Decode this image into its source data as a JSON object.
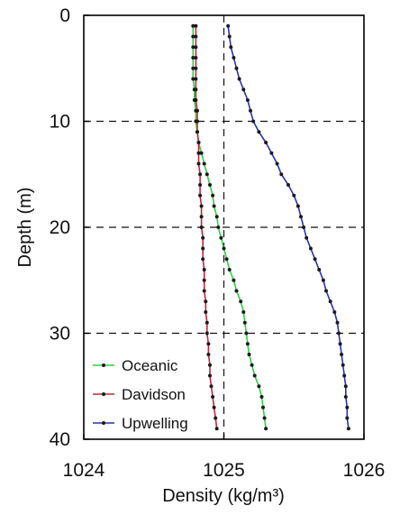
{
  "chart_data": {
    "type": "line",
    "xlabel": "Density (kg/m³)",
    "ylabel": "Depth (m)",
    "xlim": [
      1024,
      1026
    ],
    "ylim": [
      0,
      40
    ],
    "y_inverted": true,
    "x_ticks": [
      "1024",
      "1025",
      "1026"
    ],
    "y_ticks": [
      "0",
      "10",
      "20",
      "30",
      "40"
    ],
    "grid": "dashed horizontal lines at depth 10, 20, 30 and dashed vertical line at density 1025",
    "legend_position": "bottom-left",
    "series": [
      {
        "name": "Oceanic",
        "color": "#2fcf45",
        "points": [
          [
            1024.78,
            1
          ],
          [
            1024.78,
            2
          ],
          [
            1024.78,
            3
          ],
          [
            1024.78,
            4
          ],
          [
            1024.78,
            5
          ],
          [
            1024.78,
            6
          ],
          [
            1024.79,
            7
          ],
          [
            1024.79,
            8
          ],
          [
            1024.8,
            9
          ],
          [
            1024.8,
            10
          ],
          [
            1024.81,
            11
          ],
          [
            1024.82,
            12
          ],
          [
            1024.84,
            13
          ],
          [
            1024.86,
            14
          ],
          [
            1024.88,
            15
          ],
          [
            1024.9,
            16
          ],
          [
            1024.92,
            17
          ],
          [
            1024.93,
            18
          ],
          [
            1024.95,
            19
          ],
          [
            1024.96,
            20
          ],
          [
            1024.98,
            21
          ],
          [
            1025.0,
            22
          ],
          [
            1025.02,
            23
          ],
          [
            1025.04,
            24
          ],
          [
            1025.07,
            25
          ],
          [
            1025.09,
            26
          ],
          [
            1025.12,
            27
          ],
          [
            1025.14,
            28
          ],
          [
            1025.15,
            29
          ],
          [
            1025.16,
            30
          ],
          [
            1025.17,
            31
          ],
          [
            1025.18,
            32
          ],
          [
            1025.2,
            33
          ],
          [
            1025.22,
            34
          ],
          [
            1025.25,
            35
          ],
          [
            1025.27,
            36
          ],
          [
            1025.28,
            37
          ],
          [
            1025.29,
            38
          ],
          [
            1025.3,
            39
          ]
        ]
      },
      {
        "name": "Davidson",
        "color": "#c0283a",
        "points": [
          [
            1024.8,
            1
          ],
          [
            1024.8,
            2
          ],
          [
            1024.8,
            3
          ],
          [
            1024.8,
            4
          ],
          [
            1024.8,
            5
          ],
          [
            1024.8,
            6
          ],
          [
            1024.8,
            7
          ],
          [
            1024.8,
            8
          ],
          [
            1024.81,
            9
          ],
          [
            1024.81,
            10
          ],
          [
            1024.81,
            11
          ],
          [
            1024.82,
            12
          ],
          [
            1024.82,
            13
          ],
          [
            1024.82,
            14
          ],
          [
            1024.83,
            15
          ],
          [
            1024.83,
            16
          ],
          [
            1024.83,
            17
          ],
          [
            1024.84,
            18
          ],
          [
            1024.84,
            19
          ],
          [
            1024.84,
            20
          ],
          [
            1024.85,
            21
          ],
          [
            1024.85,
            22
          ],
          [
            1024.85,
            23
          ],
          [
            1024.86,
            24
          ],
          [
            1024.86,
            25
          ],
          [
            1024.86,
            26
          ],
          [
            1024.87,
            27
          ],
          [
            1024.87,
            28
          ],
          [
            1024.88,
            29
          ],
          [
            1024.88,
            30
          ],
          [
            1024.89,
            31
          ],
          [
            1024.89,
            32
          ],
          [
            1024.9,
            33
          ],
          [
            1024.9,
            34
          ],
          [
            1024.91,
            35
          ],
          [
            1024.92,
            36
          ],
          [
            1024.93,
            37
          ],
          [
            1024.94,
            38
          ],
          [
            1024.95,
            39
          ]
        ]
      },
      {
        "name": "Upwelling",
        "color": "#2833b5",
        "points": [
          [
            1025.03,
            1
          ],
          [
            1025.04,
            2
          ],
          [
            1025.05,
            3
          ],
          [
            1025.07,
            4
          ],
          [
            1025.09,
            5
          ],
          [
            1025.11,
            6
          ],
          [
            1025.14,
            7
          ],
          [
            1025.17,
            8
          ],
          [
            1025.19,
            9
          ],
          [
            1025.21,
            10
          ],
          [
            1025.25,
            11
          ],
          [
            1025.3,
            12
          ],
          [
            1025.34,
            13
          ],
          [
            1025.38,
            14
          ],
          [
            1025.41,
            15
          ],
          [
            1025.46,
            16
          ],
          [
            1025.5,
            17
          ],
          [
            1025.53,
            18
          ],
          [
            1025.55,
            19
          ],
          [
            1025.57,
            20
          ],
          [
            1025.59,
            21
          ],
          [
            1025.62,
            22
          ],
          [
            1025.65,
            23
          ],
          [
            1025.68,
            24
          ],
          [
            1025.71,
            25
          ],
          [
            1025.73,
            26
          ],
          [
            1025.76,
            27
          ],
          [
            1025.79,
            28
          ],
          [
            1025.81,
            29
          ],
          [
            1025.82,
            30
          ],
          [
            1025.83,
            31
          ],
          [
            1025.84,
            32
          ],
          [
            1025.85,
            33
          ],
          [
            1025.86,
            34
          ],
          [
            1025.87,
            35
          ],
          [
            1025.87,
            36
          ],
          [
            1025.88,
            37
          ],
          [
            1025.88,
            38
          ],
          [
            1025.89,
            39
          ]
        ]
      }
    ]
  }
}
